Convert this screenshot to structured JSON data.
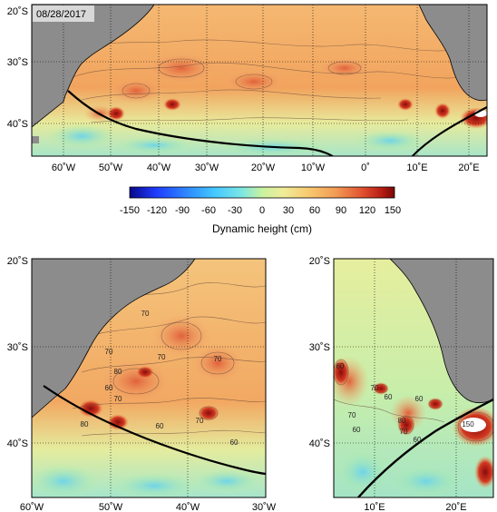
{
  "date_label": "08/28/2017",
  "colorbar": {
    "tick_labels": [
      "-150",
      "-120",
      "-90",
      "-60",
      "-30",
      "0",
      "30",
      "60",
      "90",
      "120",
      "150"
    ],
    "label": "Dynamic height (cm)",
    "colors": [
      "#08088a",
      "#1e3cff",
      "#2f8bff",
      "#43c8ff",
      "#7ae6e6",
      "#b8f0a0",
      "#eef2a0",
      "#f7c86e",
      "#f29a55",
      "#e8603a",
      "#c42a1e",
      "#8a0a0a"
    ]
  },
  "colors": {
    "land": "#8c8c8c",
    "ocean_low": "#7ad8e8",
    "ocean_mid": "#e6ee9a",
    "ocean_high": "#f0a060",
    "eddy_core": "#b81e14",
    "front_line": "#000000"
  },
  "top_map": {
    "lat_labels": [
      "20˚S",
      "30˚S",
      "40˚S"
    ],
    "lon_labels": [
      "60˚W",
      "50˚W",
      "40˚W",
      "30˚W",
      "20˚W",
      "10˚W",
      "0˚",
      "10˚E",
      "20˚E"
    ]
  },
  "bottom_left_map": {
    "lat_labels": [
      "20˚S",
      "30˚S",
      "40˚S"
    ],
    "lon_labels": [
      "60˚W",
      "50˚W",
      "40˚W",
      "30˚W"
    ],
    "contour_labels": [
      "70",
      "70",
      "70",
      "70",
      "80",
      "60",
      "70",
      "80",
      "60",
      "70",
      "60"
    ]
  },
  "bottom_right_map": {
    "lat_labels": [
      "20˚S",
      "30˚S",
      "40˚S"
    ],
    "lon_labels": [
      "10˚E",
      "20˚E"
    ],
    "contour_labels": [
      "60",
      "70",
      "60",
      "60",
      "70",
      "60",
      "60",
      "80",
      "70",
      "150"
    ]
  }
}
